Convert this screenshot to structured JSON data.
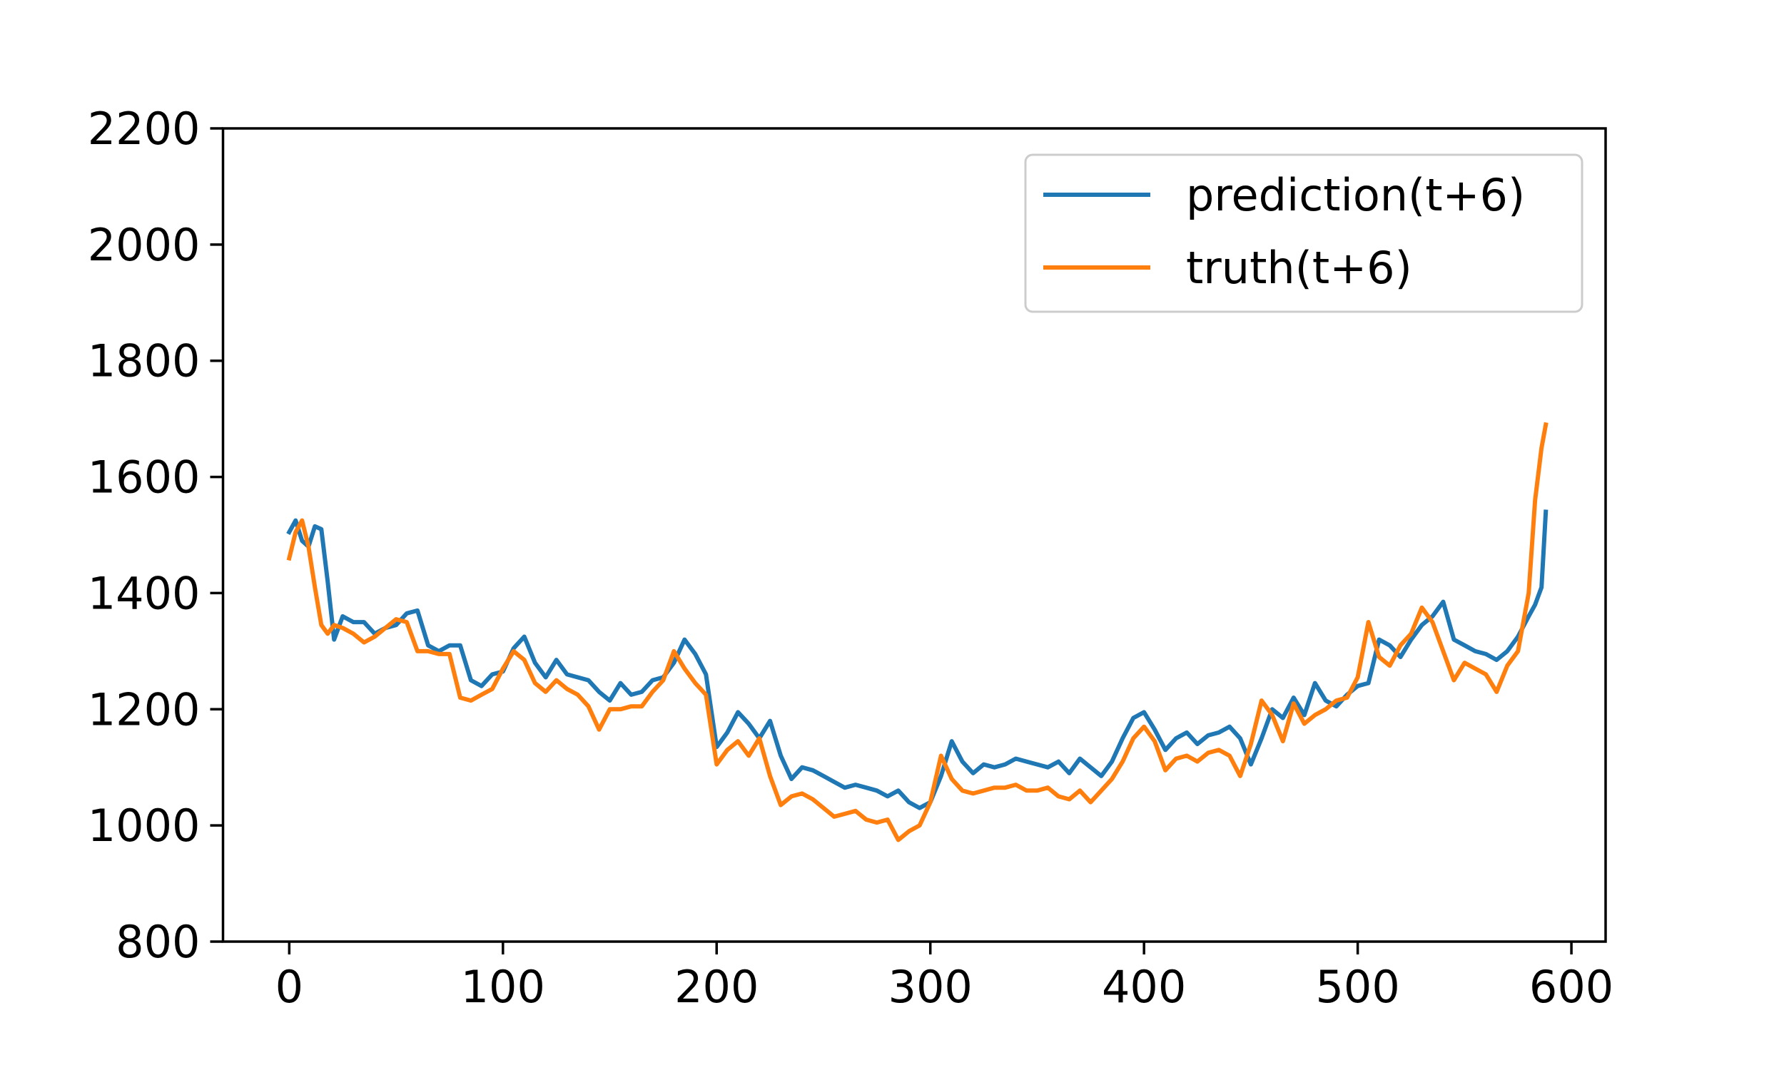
{
  "chart_data": {
    "type": "line",
    "title": "",
    "xlabel": "",
    "ylabel": "",
    "xlim": [
      -31,
      616
    ],
    "ylim": [
      800,
      2200
    ],
    "x_ticks": [
      0,
      100,
      200,
      300,
      400,
      500,
      600
    ],
    "y_ticks": [
      800,
      1000,
      1200,
      1400,
      1600,
      1800,
      2000,
      2200
    ],
    "x_tick_labels": [
      "0",
      "100",
      "200",
      "300",
      "400",
      "500",
      "600"
    ],
    "y_tick_labels": [
      "800",
      "1000",
      "1200",
      "1400",
      "1600",
      "1800",
      "2000",
      "2200"
    ],
    "grid": false,
    "legend_position": "top-right",
    "series": [
      {
        "name": "prediction(t+6)",
        "color": "#1f77b4",
        "points": [
          [
            0,
            1505
          ],
          [
            3,
            1525
          ],
          [
            6,
            1490
          ],
          [
            9,
            1480
          ],
          [
            12,
            1515
          ],
          [
            15,
            1510
          ],
          [
            18,
            1420
          ],
          [
            21,
            1320
          ],
          [
            25,
            1360
          ],
          [
            30,
            1350
          ],
          [
            35,
            1350
          ],
          [
            40,
            1330
          ],
          [
            45,
            1340
          ],
          [
            50,
            1345
          ],
          [
            55,
            1365
          ],
          [
            60,
            1370
          ],
          [
            65,
            1310
          ],
          [
            70,
            1300
          ],
          [
            75,
            1310
          ],
          [
            80,
            1310
          ],
          [
            85,
            1250
          ],
          [
            90,
            1240
          ],
          [
            95,
            1260
          ],
          [
            100,
            1265
          ],
          [
            105,
            1305
          ],
          [
            110,
            1325
          ],
          [
            115,
            1280
          ],
          [
            120,
            1255
          ],
          [
            125,
            1285
          ],
          [
            130,
            1260
          ],
          [
            135,
            1255
          ],
          [
            140,
            1250
          ],
          [
            145,
            1230
          ],
          [
            150,
            1215
          ],
          [
            155,
            1245
          ],
          [
            160,
            1225
          ],
          [
            165,
            1230
          ],
          [
            170,
            1250
          ],
          [
            175,
            1255
          ],
          [
            180,
            1280
          ],
          [
            185,
            1320
          ],
          [
            190,
            1295
          ],
          [
            195,
            1260
          ],
          [
            200,
            1135
          ],
          [
            205,
            1160
          ],
          [
            210,
            1195
          ],
          [
            215,
            1175
          ],
          [
            220,
            1150
          ],
          [
            225,
            1180
          ],
          [
            230,
            1120
          ],
          [
            235,
            1080
          ],
          [
            240,
            1100
          ],
          [
            245,
            1095
          ],
          [
            250,
            1085
          ],
          [
            255,
            1075
          ],
          [
            260,
            1065
          ],
          [
            265,
            1070
          ],
          [
            270,
            1065
          ],
          [
            275,
            1060
          ],
          [
            280,
            1050
          ],
          [
            285,
            1060
          ],
          [
            290,
            1040
          ],
          [
            295,
            1030
          ],
          [
            300,
            1040
          ],
          [
            305,
            1085
          ],
          [
            310,
            1145
          ],
          [
            315,
            1110
          ],
          [
            320,
            1090
          ],
          [
            325,
            1105
          ],
          [
            330,
            1100
          ],
          [
            335,
            1105
          ],
          [
            340,
            1115
          ],
          [
            345,
            1110
          ],
          [
            350,
            1105
          ],
          [
            355,
            1100
          ],
          [
            360,
            1110
          ],
          [
            365,
            1090
          ],
          [
            370,
            1115
          ],
          [
            375,
            1100
          ],
          [
            380,
            1085
          ],
          [
            385,
            1110
          ],
          [
            390,
            1150
          ],
          [
            395,
            1185
          ],
          [
            400,
            1195
          ],
          [
            405,
            1165
          ],
          [
            410,
            1130
          ],
          [
            415,
            1150
          ],
          [
            420,
            1160
          ],
          [
            425,
            1140
          ],
          [
            430,
            1155
          ],
          [
            435,
            1160
          ],
          [
            440,
            1170
          ],
          [
            445,
            1150
          ],
          [
            450,
            1105
          ],
          [
            455,
            1150
          ],
          [
            460,
            1200
          ],
          [
            465,
            1185
          ],
          [
            470,
            1220
          ],
          [
            475,
            1190
          ],
          [
            480,
            1245
          ],
          [
            485,
            1215
          ],
          [
            490,
            1205
          ],
          [
            495,
            1225
          ],
          [
            500,
            1240
          ],
          [
            505,
            1245
          ],
          [
            510,
            1320
          ],
          [
            515,
            1310
          ],
          [
            520,
            1290
          ],
          [
            525,
            1320
          ],
          [
            530,
            1345
          ],
          [
            535,
            1360
          ],
          [
            540,
            1385
          ],
          [
            545,
            1320
          ],
          [
            550,
            1310
          ],
          [
            555,
            1300
          ],
          [
            560,
            1295
          ],
          [
            565,
            1285
          ],
          [
            570,
            1300
          ],
          [
            575,
            1325
          ],
          [
            580,
            1360
          ],
          [
            583,
            1380
          ],
          [
            586,
            1410
          ],
          [
            588,
            1540
          ]
        ]
      },
      {
        "name": "truth(t+6)",
        "color": "#ff7f0e",
        "points": [
          [
            0,
            1460
          ],
          [
            3,
            1505
          ],
          [
            6,
            1525
          ],
          [
            9,
            1480
          ],
          [
            12,
            1410
          ],
          [
            15,
            1345
          ],
          [
            18,
            1330
          ],
          [
            21,
            1345
          ],
          [
            25,
            1340
          ],
          [
            30,
            1330
          ],
          [
            35,
            1315
          ],
          [
            40,
            1325
          ],
          [
            45,
            1340
          ],
          [
            50,
            1355
          ],
          [
            55,
            1350
          ],
          [
            60,
            1300
          ],
          [
            65,
            1300
          ],
          [
            70,
            1295
          ],
          [
            75,
            1295
          ],
          [
            80,
            1220
          ],
          [
            85,
            1215
          ],
          [
            90,
            1225
          ],
          [
            95,
            1235
          ],
          [
            100,
            1270
          ],
          [
            105,
            1300
          ],
          [
            110,
            1285
          ],
          [
            115,
            1245
          ],
          [
            120,
            1230
          ],
          [
            125,
            1250
          ],
          [
            130,
            1235
          ],
          [
            135,
            1225
          ],
          [
            140,
            1205
          ],
          [
            145,
            1165
          ],
          [
            150,
            1200
          ],
          [
            155,
            1200
          ],
          [
            160,
            1205
          ],
          [
            165,
            1205
          ],
          [
            170,
            1230
          ],
          [
            175,
            1250
          ],
          [
            180,
            1300
          ],
          [
            185,
            1270
          ],
          [
            190,
            1245
          ],
          [
            195,
            1225
          ],
          [
            200,
            1105
          ],
          [
            205,
            1130
          ],
          [
            210,
            1145
          ],
          [
            215,
            1120
          ],
          [
            220,
            1150
          ],
          [
            225,
            1085
          ],
          [
            230,
            1035
          ],
          [
            235,
            1050
          ],
          [
            240,
            1055
          ],
          [
            245,
            1045
          ],
          [
            250,
            1030
          ],
          [
            255,
            1015
          ],
          [
            260,
            1020
          ],
          [
            265,
            1025
          ],
          [
            270,
            1010
          ],
          [
            275,
            1005
          ],
          [
            280,
            1010
          ],
          [
            285,
            975
          ],
          [
            290,
            990
          ],
          [
            295,
            1000
          ],
          [
            300,
            1040
          ],
          [
            305,
            1120
          ],
          [
            310,
            1080
          ],
          [
            315,
            1060
          ],
          [
            320,
            1055
          ],
          [
            325,
            1060
          ],
          [
            330,
            1065
          ],
          [
            335,
            1065
          ],
          [
            340,
            1070
          ],
          [
            345,
            1060
          ],
          [
            350,
            1060
          ],
          [
            355,
            1065
          ],
          [
            360,
            1050
          ],
          [
            365,
            1045
          ],
          [
            370,
            1060
          ],
          [
            375,
            1040
          ],
          [
            380,
            1060
          ],
          [
            385,
            1080
          ],
          [
            390,
            1110
          ],
          [
            395,
            1150
          ],
          [
            400,
            1170
          ],
          [
            405,
            1145
          ],
          [
            410,
            1095
          ],
          [
            415,
            1115
          ],
          [
            420,
            1120
          ],
          [
            425,
            1110
          ],
          [
            430,
            1125
          ],
          [
            435,
            1130
          ],
          [
            440,
            1120
          ],
          [
            445,
            1085
          ],
          [
            450,
            1140
          ],
          [
            455,
            1215
          ],
          [
            460,
            1190
          ],
          [
            465,
            1145
          ],
          [
            470,
            1210
          ],
          [
            475,
            1175
          ],
          [
            480,
            1190
          ],
          [
            485,
            1200
          ],
          [
            490,
            1215
          ],
          [
            495,
            1220
          ],
          [
            500,
            1255
          ],
          [
            505,
            1350
          ],
          [
            510,
            1290
          ],
          [
            515,
            1275
          ],
          [
            520,
            1310
          ],
          [
            525,
            1330
          ],
          [
            530,
            1375
          ],
          [
            535,
            1350
          ],
          [
            540,
            1300
          ],
          [
            545,
            1250
          ],
          [
            550,
            1280
          ],
          [
            555,
            1270
          ],
          [
            560,
            1260
          ],
          [
            565,
            1230
          ],
          [
            570,
            1275
          ],
          [
            575,
            1300
          ],
          [
            580,
            1400
          ],
          [
            583,
            1560
          ],
          [
            586,
            1650
          ],
          [
            588,
            1690
          ]
        ]
      }
    ]
  }
}
